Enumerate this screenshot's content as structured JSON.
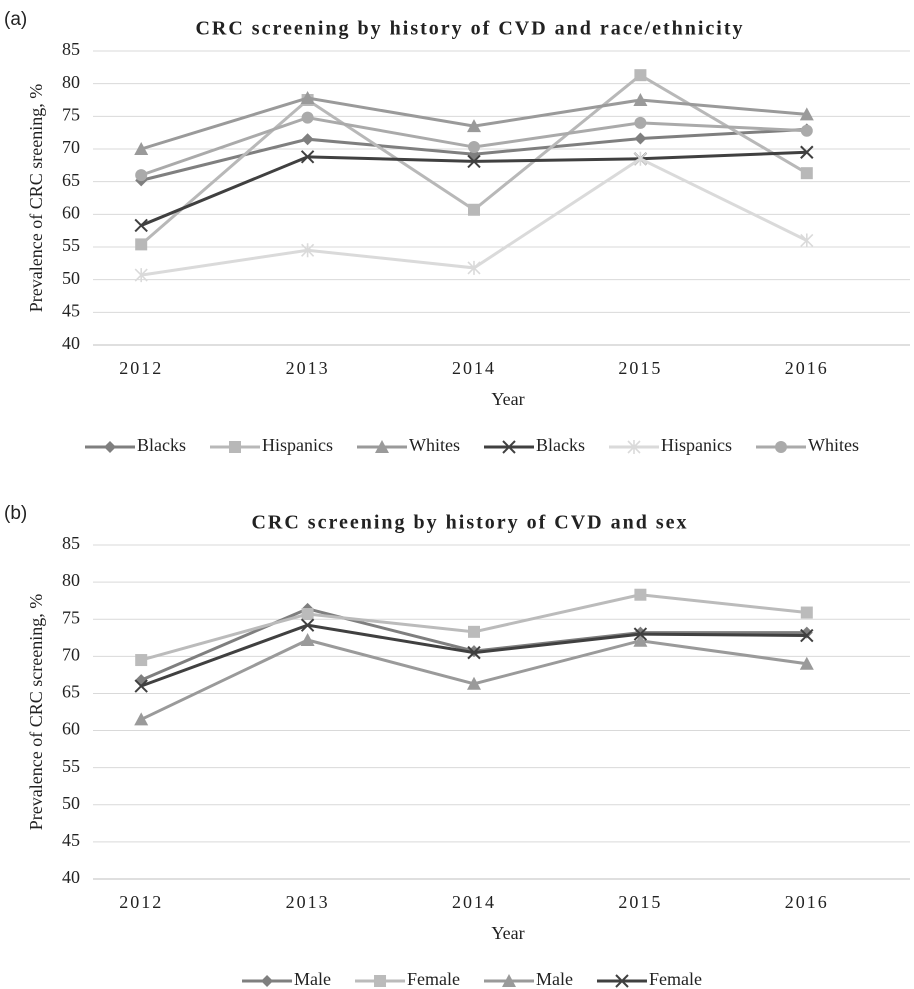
{
  "chart_data": [
    {
      "type": "line",
      "panel_label": "(a)",
      "title": "CRC screening by history of CVD and race/ethnicity",
      "x_label": "Year",
      "y_label": "Prevalence of CRC sreening, %",
      "categories": [
        "2012",
        "2013",
        "2014",
        "2015",
        "2016"
      ],
      "ylim": [
        40,
        85
      ],
      "yticks": [
        40,
        45,
        50,
        55,
        60,
        65,
        70,
        75,
        80,
        85
      ],
      "grid": true,
      "legend": "bottom",
      "series": [
        {
          "name": "Blacks",
          "color": "#7f7f7f",
          "marker": "diamond",
          "values": [
            65.2,
            71.5,
            69.2,
            71.6,
            73.0
          ]
        },
        {
          "name": "Hispanics",
          "color": "#b8b8b8",
          "marker": "square",
          "values": [
            55.4,
            77.5,
            60.7,
            81.3,
            66.3
          ]
        },
        {
          "name": "Whites",
          "color": "#9a9a9a",
          "marker": "triangle",
          "values": [
            70.0,
            77.8,
            73.5,
            77.5,
            75.3
          ]
        },
        {
          "name": "Blacks",
          "color": "#404040",
          "marker": "x",
          "values": [
            58.3,
            68.8,
            68.1,
            68.5,
            69.5
          ]
        },
        {
          "name": "Hispanics",
          "color": "#dadada",
          "marker": "asterisk",
          "values": [
            50.7,
            54.5,
            51.8,
            68.5,
            56.0
          ]
        },
        {
          "name": "Whites",
          "color": "#aaaaaa",
          "marker": "circle",
          "values": [
            66.0,
            74.8,
            70.3,
            74.0,
            72.8
          ]
        }
      ]
    },
    {
      "type": "line",
      "panel_label": "(b)",
      "title": "CRC screening by history of CVD and sex",
      "x_label": "Year",
      "y_label": "Prevalence of CRC screening, %",
      "categories": [
        "2012",
        "2013",
        "2014",
        "2015",
        "2016"
      ],
      "ylim": [
        40,
        85
      ],
      "yticks": [
        40,
        45,
        50,
        55,
        60,
        65,
        70,
        75,
        80,
        85
      ],
      "grid": true,
      "legend": "bottom",
      "series": [
        {
          "name": "Male",
          "color": "#7f7f7f",
          "marker": "diamond",
          "values": [
            66.8,
            76.4,
            70.7,
            73.2,
            73.2
          ]
        },
        {
          "name": "Female",
          "color": "#bbbbbb",
          "marker": "square",
          "values": [
            69.5,
            75.7,
            73.3,
            78.3,
            75.9
          ]
        },
        {
          "name": "Male",
          "color": "#9a9a9a",
          "marker": "triangle",
          "values": [
            61.5,
            72.2,
            66.3,
            72.1,
            69.0
          ]
        },
        {
          "name": "Female",
          "color": "#404040",
          "marker": "x",
          "values": [
            66.0,
            74.2,
            70.5,
            73.0,
            72.8
          ]
        }
      ]
    }
  ]
}
